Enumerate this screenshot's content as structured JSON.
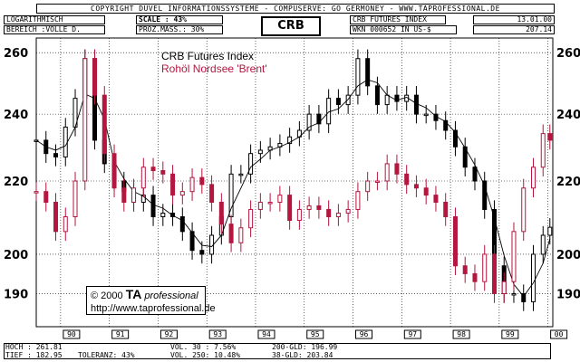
{
  "header": {
    "copyright": "COPYRIGHT  DUVEL INFORMATIONSSYSTEME - COMPUSERVE: GO GERMONEY - WWW.TAPROFESSIONAL.DE",
    "scale_mode": "LOGARITHMISCH",
    "range": "BEREICH :VOLLE D.",
    "scale_label": "SCALE : 43%",
    "prozmass": "PROZ.MASS.: 30%",
    "symbol": "CRB",
    "title_box": "CRB FUTURES INDEX",
    "wkn": "WKN 000652  IN US-$",
    "date": "13.01.00",
    "last_value": "207.14"
  },
  "overlay": {
    "legend_line1": "CRB Futures Index",
    "legend_line2": "Rohöl Nordsee 'Brent'",
    "copyright_line1_pre": "© 2000",
    "copyright_ta": "TA",
    "copyright_pro": "professional",
    "copyright_url": "http://www.taprofessional.de"
  },
  "footer": {
    "hoch": "HOCH : 261.81",
    "tief": "TIEF : 182.95",
    "toleranz": "TOLERANZ: 43%",
    "vol30": "VOL. 30 : 7.56%",
    "vol250": "VOL. 250: 10.48%",
    "gld200": "200-GLD: 196.99",
    "gld38": "38-GLD: 203.84"
  },
  "colors": {
    "crb": "#000000",
    "brent": "#b5163f",
    "grid": "#000000"
  },
  "chart_data": {
    "type": "line",
    "title": "CRB Futures Index",
    "y_scale": "log",
    "ylim": [
      182,
      265
    ],
    "y_ticks": [
      190,
      200,
      220,
      240,
      260
    ],
    "x_labels": [
      "90",
      "91",
      "92",
      "93",
      "94",
      "95",
      "96",
      "97",
      "98",
      "99",
      "00"
    ],
    "xlim": [
      1989.5,
      2000.1
    ],
    "series": [
      {
        "name": "CRB Futures Index",
        "x": [
          1989.5,
          1989.7,
          1989.9,
          1990.1,
          1990.3,
          1990.5,
          1990.7,
          1990.9,
          1991.1,
          1991.3,
          1991.5,
          1991.7,
          1991.9,
          1992.1,
          1992.3,
          1992.5,
          1992.7,
          1992.9,
          1993.1,
          1993.3,
          1993.5,
          1993.7,
          1993.9,
          1994.1,
          1994.3,
          1994.5,
          1994.7,
          1994.9,
          1995.1,
          1995.3,
          1995.5,
          1995.7,
          1995.9,
          1996.1,
          1996.3,
          1996.5,
          1996.7,
          1996.9,
          1997.1,
          1997.3,
          1997.5,
          1997.7,
          1997.9,
          1998.1,
          1998.3,
          1998.5,
          1998.7,
          1998.9,
          1999.1,
          1999.3,
          1999.5,
          1999.7,
          1999.9,
          2000.04
        ],
        "values": [
          232,
          228,
          227,
          236,
          245,
          258,
          232,
          225,
          220,
          217,
          214,
          216,
          210,
          211,
          210,
          206,
          201,
          200,
          205,
          210,
          222,
          222,
          228,
          229,
          230,
          231,
          233,
          235,
          240,
          237,
          245,
          243,
          246,
          258,
          249,
          243,
          246,
          244,
          246,
          240,
          240,
          238,
          235,
          230,
          224,
          220,
          212,
          197,
          190,
          190,
          188,
          200,
          205,
          207.14
        ]
      },
      {
        "name": "Rohöl Nordsee 'Brent'",
        "x": [
          1989.5,
          1989.7,
          1989.9,
          1990.1,
          1990.3,
          1990.5,
          1990.7,
          1990.9,
          1991.1,
          1991.3,
          1991.5,
          1991.7,
          1991.9,
          1992.1,
          1992.3,
          1992.5,
          1992.7,
          1992.9,
          1993.1,
          1993.3,
          1993.5,
          1993.7,
          1993.9,
          1994.1,
          1994.3,
          1994.5,
          1994.7,
          1994.9,
          1995.1,
          1995.3,
          1995.5,
          1995.7,
          1995.9,
          1996.1,
          1996.3,
          1996.5,
          1996.7,
          1996.9,
          1997.1,
          1997.3,
          1997.5,
          1997.7,
          1997.9,
          1998.1,
          1998.3,
          1998.5,
          1998.7,
          1998.9,
          1999.1,
          1999.3,
          1999.5,
          1999.7,
          1999.9,
          2000.04
        ],
        "values": [
          217,
          214,
          206,
          210,
          220,
          258,
          246,
          228,
          218,
          214,
          218,
          224,
          223,
          222,
          216,
          217,
          221,
          219,
          214,
          208,
          203,
          207,
          212,
          214,
          214,
          216,
          209,
          212,
          213,
          212,
          210,
          211,
          212,
          217,
          220,
          220,
          225,
          222,
          219,
          218,
          216,
          214,
          210,
          197,
          195,
          193,
          200,
          190,
          193,
          206,
          218,
          224,
          234,
          232
        ]
      }
    ],
    "legend_position": "top-left",
    "grid": true
  }
}
